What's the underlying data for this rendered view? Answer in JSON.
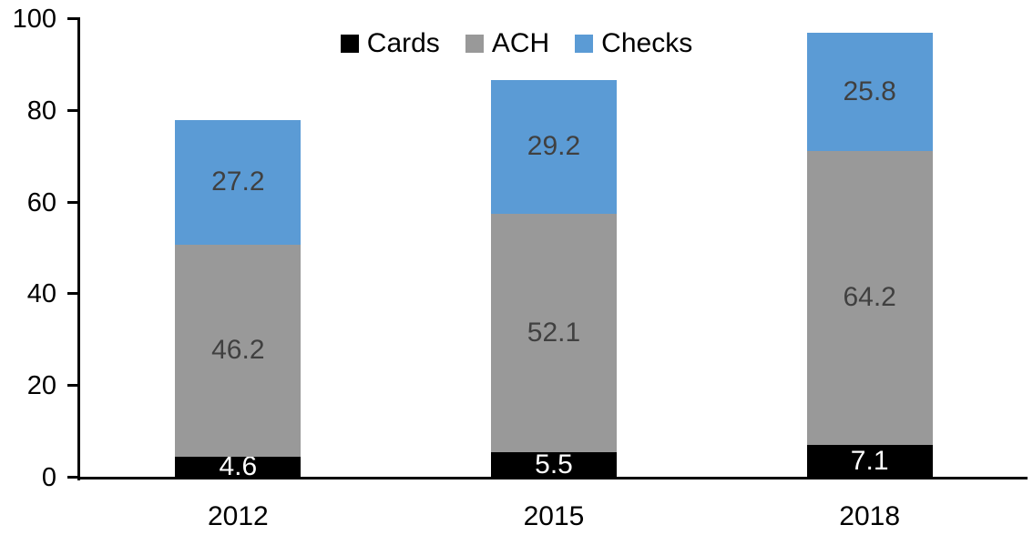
{
  "chart_data": {
    "type": "bar",
    "stacked": true,
    "title": "",
    "xlabel": "",
    "ylabel": "",
    "categories": [
      "2012",
      "2015",
      "2018"
    ],
    "series": [
      {
        "name": "Cards",
        "color": "#000000",
        "label_color": "#ffffff",
        "values": [
          4.6,
          5.5,
          7.1
        ]
      },
      {
        "name": "ACH",
        "color": "#999999",
        "label_color": "#404040",
        "values": [
          46.2,
          52.1,
          64.2
        ]
      },
      {
        "name": "Checks",
        "color": "#5b9bd5",
        "label_color": "#404040",
        "values": [
          27.2,
          29.2,
          25.8
        ]
      }
    ],
    "ylim": [
      0,
      100
    ],
    "yticks": [
      0,
      20,
      40,
      60,
      80,
      100
    ],
    "legend_position": "top-center",
    "grid": false
  },
  "colors": {
    "axis": "#000000",
    "background": "#ffffff"
  }
}
